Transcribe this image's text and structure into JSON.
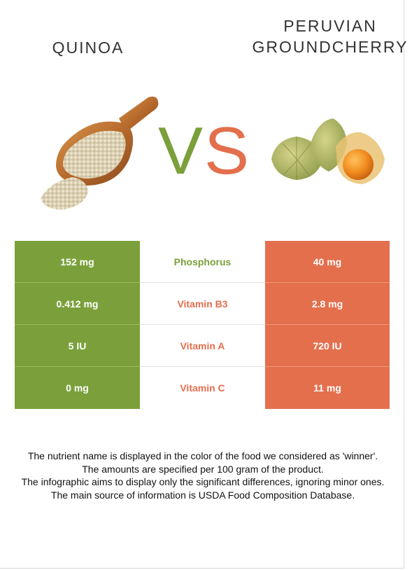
{
  "left_food": {
    "name": "QUINOA",
    "color": "#7ba03b"
  },
  "right_food": {
    "name_lines": [
      "PERUVIAN",
      "GROUNDCHERRY"
    ],
    "color": "#e46f4d"
  },
  "vs": {
    "v": "V",
    "s": "S"
  },
  "rows": [
    {
      "left": "152 mg",
      "nutrient": "Phosphorus",
      "right": "40 mg",
      "winner": "left"
    },
    {
      "left": "0.412 mg",
      "nutrient": "Vitamin B3",
      "right": "2.8 mg",
      "winner": "right"
    },
    {
      "left": "5 IU",
      "nutrient": "Vitamin A",
      "right": "720 IU",
      "winner": "right"
    },
    {
      "left": "0 mg",
      "nutrient": "Vitamin C",
      "right": "11 mg",
      "winner": "right"
    }
  ],
  "footnotes": [
    "The nutrient name is displayed in the color of the food we considered as 'winner'.",
    "The amounts are specified per 100 gram of the product.",
    "The infographic aims to display only the significant differences, ignoring minor ones.",
    "The main source of information is USDA Food Composition Database."
  ]
}
